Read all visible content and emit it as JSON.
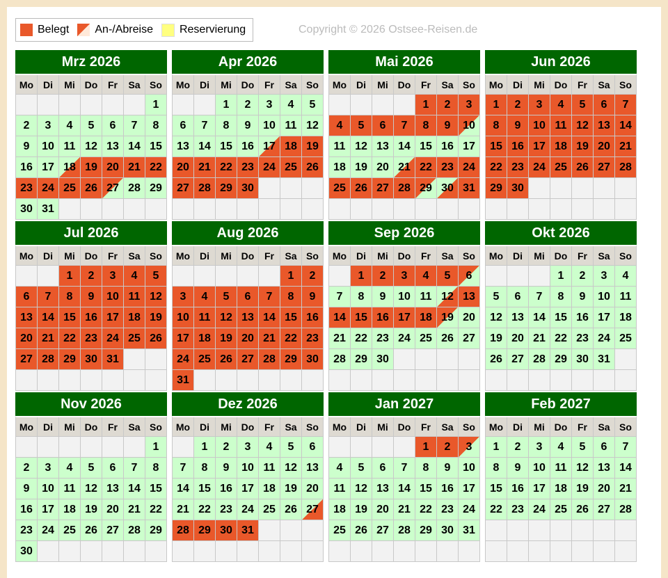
{
  "legend": [
    {
      "label": "Belegt"
    },
    {
      "label": "An-/Abreise"
    },
    {
      "label": "Reservierung"
    }
  ],
  "copyright": "Copyright © 2026 Ostsee-Reisen.de",
  "weekdays": [
    "Mo",
    "Di",
    "Mi",
    "Do",
    "Fr",
    "Sa",
    "So"
  ],
  "months": [
    {
      "title": "Mrz 2026",
      "offset": 6,
      "days": [
        1,
        2,
        3,
        4,
        5,
        6,
        7,
        8,
        9,
        10,
        11,
        12,
        13,
        14,
        15,
        16,
        17,
        18,
        19,
        20,
        21,
        22,
        23,
        24,
        25,
        26,
        27,
        28,
        29,
        30,
        31
      ],
      "booked": [
        [
          19,
          26
        ]
      ],
      "arrive": [
        18
      ],
      "depart": [
        27
      ]
    },
    {
      "title": "Apr 2026",
      "offset": 2,
      "days": [
        1,
        2,
        3,
        4,
        5,
        6,
        7,
        8,
        9,
        10,
        11,
        12,
        13,
        14,
        15,
        16,
        17,
        18,
        19,
        20,
        21,
        22,
        23,
        24,
        25,
        26,
        27,
        28,
        29,
        30
      ],
      "booked": [
        [
          18,
          30
        ]
      ],
      "arrive": [
        17
      ],
      "depart": []
    },
    {
      "title": "Mai 2026",
      "offset": 4,
      "days": [
        1,
        2,
        3,
        4,
        5,
        6,
        7,
        8,
        9,
        10,
        11,
        12,
        13,
        14,
        15,
        16,
        17,
        18,
        19,
        20,
        21,
        22,
        23,
        24,
        25,
        26,
        27,
        28,
        29,
        30,
        31
      ],
      "booked": [
        [
          1,
          9
        ],
        [
          22,
          28
        ],
        [
          31,
          31
        ]
      ],
      "arrive": [
        21,
        30
      ],
      "depart": [
        10,
        29
      ]
    },
    {
      "title": "Jun 2026",
      "offset": 0,
      "days": [
        1,
        2,
        3,
        4,
        5,
        6,
        7,
        8,
        9,
        10,
        11,
        12,
        13,
        14,
        15,
        16,
        17,
        18,
        19,
        20,
        21,
        22,
        23,
        24,
        25,
        26,
        27,
        28,
        29,
        30
      ],
      "booked": [
        [
          1,
          30
        ]
      ],
      "arrive": [],
      "depart": []
    },
    {
      "title": "Jul 2026",
      "offset": 2,
      "days": [
        1,
        2,
        3,
        4,
        5,
        6,
        7,
        8,
        9,
        10,
        11,
        12,
        13,
        14,
        15,
        16,
        17,
        18,
        19,
        20,
        21,
        22,
        23,
        24,
        25,
        26,
        27,
        28,
        29,
        30,
        31
      ],
      "booked": [
        [
          1,
          31
        ]
      ],
      "arrive": [],
      "depart": []
    },
    {
      "title": "Aug 2026",
      "offset": 5,
      "days": [
        1,
        2,
        3,
        4,
        5,
        6,
        7,
        8,
        9,
        10,
        11,
        12,
        13,
        14,
        15,
        16,
        17,
        18,
        19,
        20,
        21,
        22,
        23,
        24,
        25,
        26,
        27,
        28,
        29,
        30,
        31
      ],
      "booked": [
        [
          1,
          31
        ]
      ],
      "arrive": [],
      "depart": []
    },
    {
      "title": "Sep 2026",
      "offset": 1,
      "days": [
        1,
        2,
        3,
        4,
        5,
        6,
        7,
        8,
        9,
        10,
        11,
        12,
        13,
        14,
        15,
        16,
        17,
        18,
        19,
        20,
        21,
        22,
        23,
        24,
        25,
        26,
        27,
        28,
        29,
        30
      ],
      "booked": [
        [
          1,
          5
        ],
        [
          13,
          18
        ]
      ],
      "arrive": [
        12
      ],
      "depart": [
        6,
        19
      ]
    },
    {
      "title": "Okt 2026",
      "offset": 3,
      "days": [
        1,
        2,
        3,
        4,
        5,
        6,
        7,
        8,
        9,
        10,
        11,
        12,
        13,
        14,
        15,
        16,
        17,
        18,
        19,
        20,
        21,
        22,
        23,
        24,
        25,
        26,
        27,
        28,
        29,
        30,
        31
      ],
      "booked": [],
      "arrive": [],
      "depart": []
    },
    {
      "title": "Nov 2026",
      "offset": 6,
      "days": [
        1,
        2,
        3,
        4,
        5,
        6,
        7,
        8,
        9,
        10,
        11,
        12,
        13,
        14,
        15,
        16,
        17,
        18,
        19,
        20,
        21,
        22,
        23,
        24,
        25,
        26,
        27,
        28,
        29,
        30
      ],
      "booked": [],
      "arrive": [],
      "depart": []
    },
    {
      "title": "Dez 2026",
      "offset": 1,
      "days": [
        1,
        2,
        3,
        4,
        5,
        6,
        7,
        8,
        9,
        10,
        11,
        12,
        13,
        14,
        15,
        16,
        17,
        18,
        19,
        20,
        21,
        22,
        23,
        24,
        25,
        26,
        27,
        28,
        29,
        30,
        31
      ],
      "booked": [
        [
          28,
          31
        ]
      ],
      "arrive": [
        27
      ],
      "depart": []
    },
    {
      "title": "Jan 2027",
      "offset": 4,
      "days": [
        1,
        2,
        3,
        4,
        5,
        6,
        7,
        8,
        9,
        10,
        11,
        12,
        13,
        14,
        15,
        16,
        17,
        18,
        19,
        20,
        21,
        22,
        23,
        24,
        25,
        26,
        27,
        28,
        29,
        30,
        31
      ],
      "booked": [
        [
          1,
          2
        ]
      ],
      "arrive": [],
      "depart": [
        3
      ]
    },
    {
      "title": "Feb 2027",
      "offset": 0,
      "days": [
        1,
        2,
        3,
        4,
        5,
        6,
        7,
        8,
        9,
        10,
        11,
        12,
        13,
        14,
        15,
        16,
        17,
        18,
        19,
        20,
        21,
        22,
        23,
        24,
        25,
        26,
        27,
        28
      ],
      "booked": [],
      "arrive": [],
      "depart": []
    }
  ]
}
